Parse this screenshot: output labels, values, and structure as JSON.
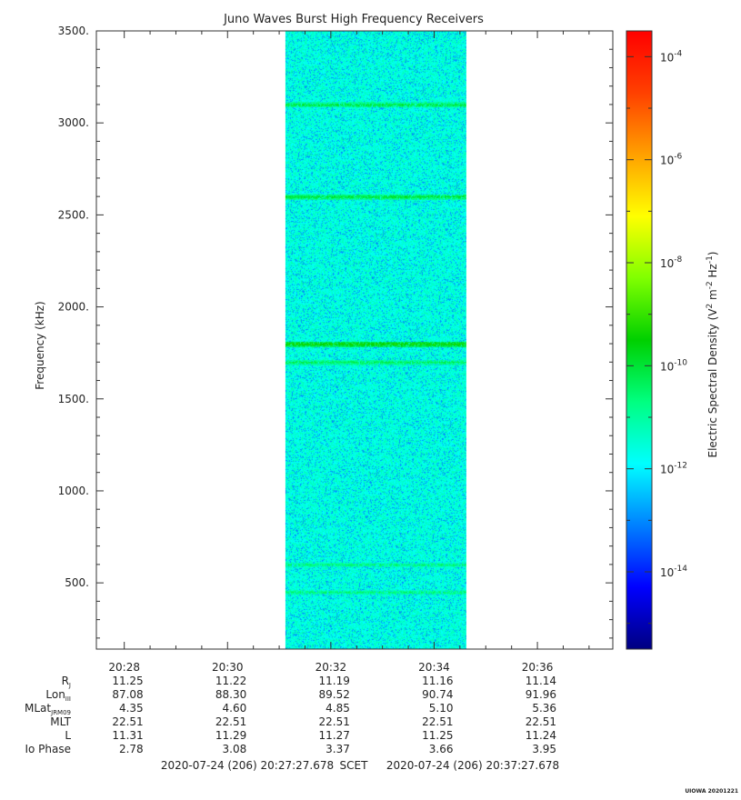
{
  "chart_data": {
    "type": "heatmap",
    "title": "Juno Waves Burst High Frequency Receivers",
    "ylabel": "Frequency (kHz)",
    "ylim": [
      140,
      3500
    ],
    "y_ticks": [
      {
        "value": 500,
        "label": "500."
      },
      {
        "value": 1000,
        "label": "1000."
      },
      {
        "value": 1500,
        "label": "1500."
      },
      {
        "value": 2000,
        "label": "2000."
      },
      {
        "value": 2500,
        "label": "2500."
      },
      {
        "value": 3000,
        "label": "3000."
      },
      {
        "value": 3500,
        "label": "3500."
      }
    ],
    "x_ticks": [
      "20:28",
      "20:30",
      "20:32",
      "20:34",
      "20:36"
    ],
    "xlim_minutes": [
      27.46,
      37.46
    ],
    "data_window_minutes": [
      31.12,
      34.62
    ],
    "background_log_value": -11.6,
    "emission_bands": [
      {
        "frequency": 1800,
        "log_value": -9.4
      },
      {
        "frequency": 1700,
        "log_value": -10.3
      },
      {
        "frequency": 2600,
        "log_value": -10.0
      },
      {
        "frequency": 3100,
        "log_value": -10.1
      },
      {
        "frequency": 600,
        "log_value": -10.6
      },
      {
        "frequency": 450,
        "log_value": -10.6
      }
    ],
    "colorbar": {
      "label_prefix": "Electric Spectral Density (V",
      "label_unit_1": "2",
      "label_mid": " m",
      "label_unit_2": "-2",
      "label_mid2": " Hz",
      "label_unit_3": "-1",
      "label_suffix": ")",
      "range_log": [
        -15.5,
        -3.5
      ],
      "ticks": [
        {
          "value": -4,
          "base": "10",
          "exp": "-4"
        },
        {
          "value": -6,
          "base": "10",
          "exp": "-6"
        },
        {
          "value": -8,
          "base": "10",
          "exp": "-8"
        },
        {
          "value": -10,
          "base": "10",
          "exp": "-10"
        },
        {
          "value": -12,
          "base": "10",
          "exp": "-12"
        },
        {
          "value": -14,
          "base": "10",
          "exp": "-14"
        }
      ],
      "colors": [
        "#000080",
        "#0000ff",
        "#0080ff",
        "#00ffff",
        "#00ff80",
        "#00d000",
        "#80ff00",
        "#ffff00",
        "#ffa000",
        "#ff4000",
        "#ff0000"
      ]
    },
    "ephemeris": {
      "labels": [
        {
          "main": "R",
          "sub": "J"
        },
        {
          "main": "Lon",
          "sub": "III"
        },
        {
          "main": "MLat",
          "sub": "JRM09"
        },
        {
          "main": "MLT",
          "sub": ""
        },
        {
          "main": "L",
          "sub": ""
        },
        {
          "main": "Io Phase",
          "sub": ""
        }
      ],
      "rows": [
        [
          "11.25",
          "11.22",
          "11.19",
          "11.16",
          "11.14"
        ],
        [
          "87.08",
          "88.30",
          "89.52",
          "90.74",
          "91.96"
        ],
        [
          "4.35",
          "4.60",
          "4.85",
          "5.10",
          "5.36"
        ],
        [
          "22.51",
          "22.51",
          "22.51",
          "22.51",
          "22.51"
        ],
        [
          "11.31",
          "11.29",
          "11.27",
          "11.25",
          "11.24"
        ],
        [
          "2.78",
          "3.08",
          "3.37",
          "3.66",
          "3.95"
        ]
      ]
    },
    "time_range": {
      "start": "2020-07-24 (206) 20:27:27.678",
      "mid": "SCET",
      "end": "2020-07-24 (206) 20:37:27.678"
    },
    "credit": "UIOWA 20201221"
  }
}
